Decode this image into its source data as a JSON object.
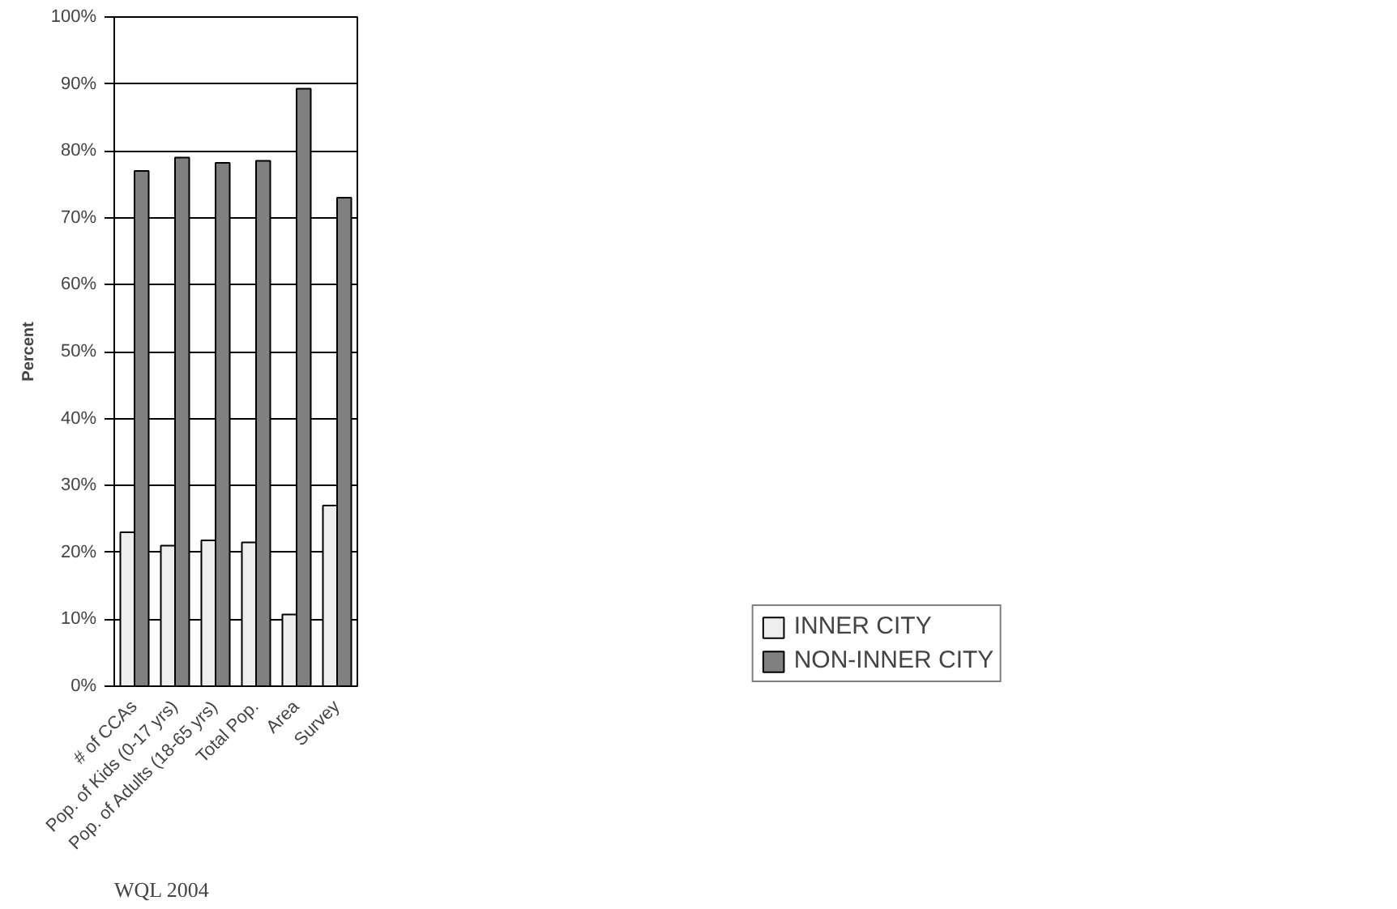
{
  "chart_data": {
    "type": "bar",
    "ylabel": "Percent",
    "annotations": [
      "WQL 2004"
    ],
    "categories": [
      "# of CCAs",
      "Pop. of Kids (0-17 yrs)",
      "Pop. of Adults (18-65 yrs)",
      "Total Pop.",
      "Area",
      "Survey"
    ],
    "series": [
      {
        "name": "INNER CITY",
        "color": "#eeeeee",
        "values": [
          23,
          21,
          21.8,
          21.5,
          10.7,
          27
        ]
      },
      {
        "name": "NON-INNER CITY",
        "color": "#808080",
        "values": [
          77,
          79,
          78.2,
          78.5,
          89.3,
          73
        ]
      }
    ],
    "ylim": [
      0,
      100
    ],
    "yticks": [
      {
        "value": 0,
        "label": "0%"
      },
      {
        "value": 10,
        "label": "10%"
      },
      {
        "value": 20,
        "label": "20%"
      },
      {
        "value": 30,
        "label": "30%"
      },
      {
        "value": 40,
        "label": "40%"
      },
      {
        "value": 50,
        "label": "50%"
      },
      {
        "value": 60,
        "label": "60%"
      },
      {
        "value": 70,
        "label": "70%"
      },
      {
        "value": 80,
        "label": "80%"
      },
      {
        "value": 90,
        "label": "90%"
      },
      {
        "value": 100,
        "label": "100%"
      }
    ],
    "grid": "y",
    "legend": "bottom right"
  }
}
